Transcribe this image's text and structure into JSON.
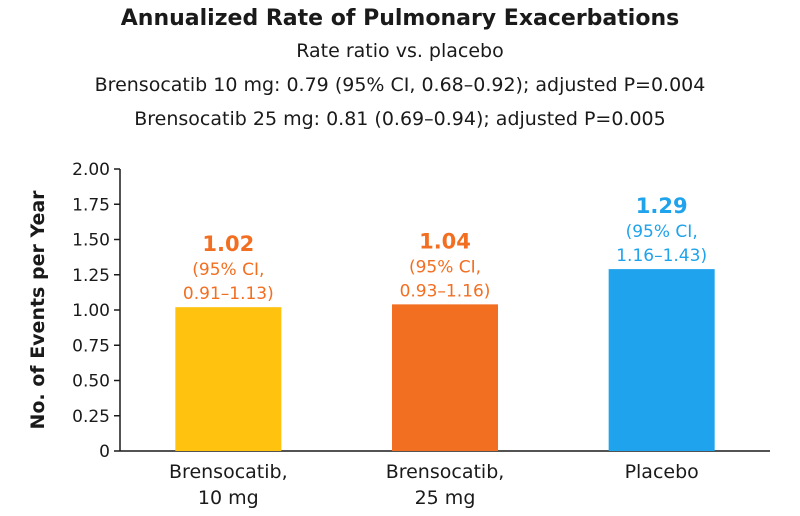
{
  "chart_data": {
    "type": "bar",
    "title": "Annualized Rate of Pulmonary Exacerbations",
    "subtitle_lines": [
      "Rate ratio vs. placebo",
      "Brensocatib 10 mg: 0.79 (95% CI, 0.68–0.92); adjusted P=0.004",
      "Brensocatib 25 mg: 0.81 (0.69–0.94); adjusted P=0.005"
    ],
    "ylabel": "No. of Events per Year",
    "xlabel": "",
    "ylim": [
      0,
      2.0
    ],
    "yticks": [
      "0",
      "0.25",
      "0.50",
      "0.75",
      "1.00",
      "1.25",
      "1.50",
      "1.75",
      "2.00"
    ],
    "bars": [
      {
        "category": [
          "Brensocatib,",
          "10 mg"
        ],
        "value": 1.02,
        "value_label": "1.02",
        "ci_lines": [
          "(95% CI,",
          "0.91–1.13)"
        ],
        "color": "#FFC20E",
        "label_color": "#F26F21"
      },
      {
        "category": [
          "Brensocatib,",
          "25 mg"
        ],
        "value": 1.04,
        "value_label": "1.04",
        "ci_lines": [
          "(95% CI,",
          "0.93–1.16)"
        ],
        "color": "#F26F21",
        "label_color": "#F26F21"
      },
      {
        "category": [
          "Placebo"
        ],
        "value": 1.29,
        "value_label": "1.29",
        "ci_lines": [
          "(95% CI,",
          "1.16–1.43)"
        ],
        "color": "#1FA3EC",
        "label_color": "#1FA3EC"
      }
    ]
  }
}
